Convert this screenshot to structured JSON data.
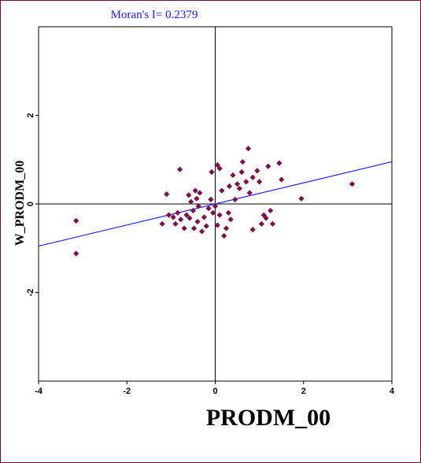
{
  "chart_data": {
    "type": "scatter",
    "title": "Moran's I= 0.2379",
    "xlabel": "PRODM_00",
    "ylabel": "W_PRODM_00",
    "xlim": [
      -4,
      4
    ],
    "ylim": [
      -4,
      4
    ],
    "x_ticks": [
      -4,
      -2,
      0,
      2,
      4
    ],
    "y_ticks": [
      -2,
      0,
      2
    ],
    "x_tick_labels": [
      "-4",
      "-2",
      "0",
      "2",
      "4"
    ],
    "y_tick_labels": [
      "-2",
      "0",
      "2"
    ],
    "slope": 0.2379,
    "grid": false,
    "colors": {
      "points": "#7a1048",
      "regression": "#2020ff",
      "title": "#1a1aff",
      "frame": "#7a0030"
    },
    "points": [
      [
        -3.15,
        -0.38
      ],
      [
        -3.15,
        -1.12
      ],
      [
        -1.1,
        0.22
      ],
      [
        -1.05,
        -0.25
      ],
      [
        -0.95,
        -0.3
      ],
      [
        -1.2,
        -0.45
      ],
      [
        -0.9,
        -0.45
      ],
      [
        -0.85,
        -0.2
      ],
      [
        -0.8,
        0.78
      ],
      [
        -0.78,
        -0.35
      ],
      [
        -0.7,
        -0.55
      ],
      [
        -0.65,
        -0.25
      ],
      [
        -0.6,
        0.2
      ],
      [
        -0.58,
        -0.32
      ],
      [
        -0.55,
        0.05
      ],
      [
        -0.5,
        -0.15
      ],
      [
        -0.48,
        -0.55
      ],
      [
        -0.45,
        0.3
      ],
      [
        -0.42,
        0.12
      ],
      [
        -0.4,
        -0.4
      ],
      [
        -0.38,
        -0.05
      ],
      [
        -0.35,
        0.25
      ],
      [
        -0.3,
        -0.62
      ],
      [
        -0.25,
        -0.3
      ],
      [
        -0.2,
        -0.5
      ],
      [
        -0.15,
        -0.1
      ],
      [
        -0.1,
        0.1
      ],
      [
        -0.05,
        -0.2
      ],
      [
        0.0,
        -0.05
      ],
      [
        -0.08,
        0.72
      ],
      [
        0.05,
        0.88
      ],
      [
        0.05,
        -0.48
      ],
      [
        0.1,
        0.8
      ],
      [
        0.1,
        -0.25
      ],
      [
        0.15,
        0.3
      ],
      [
        0.2,
        -0.72
      ],
      [
        0.25,
        -0.55
      ],
      [
        0.3,
        -0.2
      ],
      [
        0.32,
        0.4
      ],
      [
        0.35,
        -0.35
      ],
      [
        0.4,
        0.65
      ],
      [
        0.45,
        0.1
      ],
      [
        0.5,
        0.45
      ],
      [
        0.55,
        0.35
      ],
      [
        0.6,
        0.72
      ],
      [
        0.62,
        0.95
      ],
      [
        0.7,
        0.5
      ],
      [
        0.75,
        1.25
      ],
      [
        0.78,
        0.25
      ],
      [
        0.85,
        -0.58
      ],
      [
        0.85,
        0.6
      ],
      [
        0.95,
        0.75
      ],
      [
        1.0,
        0.5
      ],
      [
        1.05,
        -0.45
      ],
      [
        1.1,
        -0.25
      ],
      [
        1.15,
        -0.32
      ],
      [
        1.2,
        0.85
      ],
      [
        1.25,
        -0.15
      ],
      [
        1.3,
        -0.45
      ],
      [
        1.45,
        0.92
      ],
      [
        1.5,
        0.55
      ],
      [
        1.95,
        0.12
      ],
      [
        3.1,
        0.45
      ]
    ]
  }
}
